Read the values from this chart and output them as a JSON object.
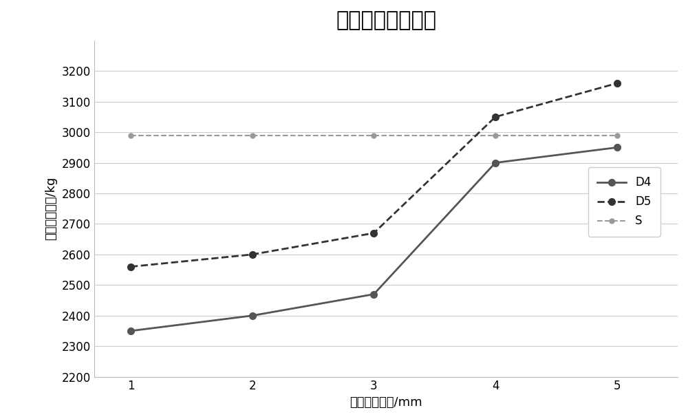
{
  "title": "亩产量变化趋势图",
  "xlabel": "生物炭添加量/mm",
  "ylabel": "辣椒拟亩产量/kg",
  "x": [
    1,
    2,
    3,
    4,
    5
  ],
  "D4": [
    2350,
    2400,
    2470,
    2900,
    2950
  ],
  "D5": [
    2560,
    2600,
    2670,
    3050,
    3160
  ],
  "S": [
    2990,
    2990,
    2990,
    2990,
    2990
  ],
  "ylim": [
    2200,
    3300
  ],
  "yticks": [
    2200,
    2300,
    2400,
    2500,
    2600,
    2700,
    2800,
    2900,
    3000,
    3100,
    3200
  ],
  "xticks": [
    1,
    2,
    3,
    4,
    5
  ],
  "D4_color": "#555555",
  "D5_color": "#333333",
  "S_color": "#999999",
  "background_color": "#ffffff",
  "legend_labels": [
    "D4",
    "D5",
    "S"
  ],
  "title_fontsize": 22,
  "label_fontsize": 13,
  "tick_fontsize": 12,
  "legend_fontsize": 12
}
